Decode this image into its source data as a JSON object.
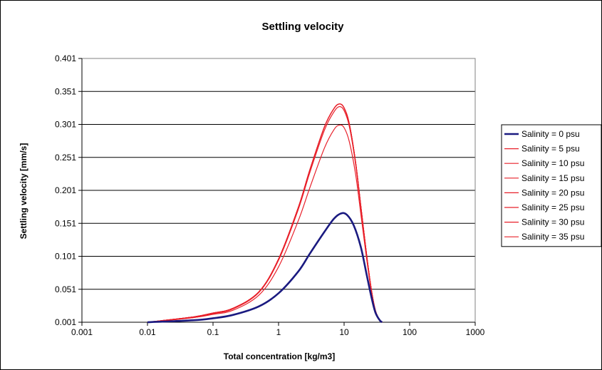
{
  "chart_data": {
    "type": "line",
    "title": "Settling velocity",
    "xlabel": "Total concentration [kg/m3]",
    "ylabel": "Settling velocity [mm/s]",
    "x_scale": "log",
    "xlim": [
      0.001,
      1000
    ],
    "ylim": [
      0.001,
      0.401
    ],
    "x_ticks": [
      "0.001",
      "0.01",
      "0.1",
      "1",
      "10",
      "100",
      "1000"
    ],
    "y_ticks": [
      "0.001",
      "0.051",
      "0.101",
      "0.151",
      "0.201",
      "0.251",
      "0.301",
      "0.351",
      "0.401"
    ],
    "grid": "horizontal",
    "legend_position": "right",
    "colors": {
      "fresh": "#1a1a80",
      "saline": "#e8202a"
    },
    "series": [
      {
        "name": "Salinity = 0 psu",
        "color": "#1a1a80",
        "width": 2.6,
        "x": [
          0.01,
          0.05,
          0.1,
          0.2,
          0.5,
          1,
          2,
          3,
          5,
          7,
          9,
          11,
          14,
          18,
          22,
          26,
          30,
          35,
          38
        ],
        "y": [
          0.001,
          0.004,
          0.007,
          0.012,
          0.025,
          0.045,
          0.078,
          0.105,
          0.138,
          0.158,
          0.166,
          0.164,
          0.148,
          0.115,
          0.074,
          0.04,
          0.016,
          0.004,
          0.001
        ]
      },
      {
        "name": "Salinity = 5 psu",
        "color": "#e8202a",
        "width": 1.2,
        "x": [
          0.01,
          0.05,
          0.1,
          0.2,
          0.5,
          1,
          2,
          3,
          5,
          7,
          8.5,
          10,
          12,
          15,
          18,
          22,
          26,
          30,
          35,
          38
        ],
        "y": [
          0.001,
          0.008,
          0.013,
          0.019,
          0.042,
          0.085,
          0.155,
          0.205,
          0.265,
          0.293,
          0.3,
          0.296,
          0.275,
          0.225,
          0.165,
          0.098,
          0.048,
          0.018,
          0.004,
          0.001
        ]
      },
      {
        "name": "Salinity = 10 psu",
        "color": "#e8202a",
        "width": 1.2,
        "x": [
          0.01,
          0.05,
          0.1,
          0.2,
          0.5,
          1,
          2,
          3,
          5,
          7,
          8.5,
          10,
          12,
          15,
          18,
          22,
          26,
          30,
          35,
          38
        ],
        "y": [
          0.001,
          0.008,
          0.014,
          0.021,
          0.046,
          0.095,
          0.172,
          0.228,
          0.292,
          0.32,
          0.328,
          0.322,
          0.298,
          0.24,
          0.175,
          0.103,
          0.05,
          0.019,
          0.004,
          0.001
        ]
      },
      {
        "name": "Salinity = 15 psu",
        "color": "#e8202a",
        "width": 1.2,
        "x": [
          0.01,
          0.05,
          0.1,
          0.2,
          0.5,
          1,
          2,
          3,
          5,
          7,
          8.5,
          10,
          12,
          15,
          18,
          22,
          26,
          30,
          35,
          38
        ],
        "y": [
          0.001,
          0.009,
          0.015,
          0.022,
          0.047,
          0.097,
          0.175,
          0.232,
          0.297,
          0.325,
          0.332,
          0.326,
          0.302,
          0.243,
          0.177,
          0.104,
          0.051,
          0.019,
          0.004,
          0.001
        ]
      },
      {
        "name": "Salinity = 20 psu",
        "color": "#e8202a",
        "width": 1.2,
        "x": [
          0.01,
          0.05,
          0.1,
          0.2,
          0.5,
          1,
          2,
          3,
          5,
          7,
          8.5,
          10,
          12,
          15,
          18,
          22,
          26,
          30,
          35,
          38
        ],
        "y": [
          0.001,
          0.009,
          0.015,
          0.022,
          0.047,
          0.097,
          0.175,
          0.232,
          0.297,
          0.325,
          0.332,
          0.326,
          0.302,
          0.243,
          0.177,
          0.104,
          0.051,
          0.019,
          0.004,
          0.001
        ]
      },
      {
        "name": "Salinity = 25 psu",
        "color": "#e8202a",
        "width": 1.2,
        "x": [
          0.01,
          0.05,
          0.1,
          0.2,
          0.5,
          1,
          2,
          3,
          5,
          7,
          8.5,
          10,
          12,
          15,
          18,
          22,
          26,
          30,
          35,
          38
        ],
        "y": [
          0.001,
          0.009,
          0.015,
          0.022,
          0.047,
          0.097,
          0.175,
          0.232,
          0.297,
          0.325,
          0.332,
          0.326,
          0.302,
          0.243,
          0.177,
          0.104,
          0.051,
          0.019,
          0.004,
          0.001
        ]
      },
      {
        "name": "Salinity = 30 psu",
        "color": "#e8202a",
        "width": 1.2,
        "x": [
          0.01,
          0.05,
          0.1,
          0.2,
          0.5,
          1,
          2,
          3,
          5,
          7,
          8.5,
          10,
          12,
          15,
          18,
          22,
          26,
          30,
          35,
          38
        ],
        "y": [
          0.001,
          0.009,
          0.015,
          0.022,
          0.047,
          0.097,
          0.175,
          0.232,
          0.297,
          0.325,
          0.332,
          0.326,
          0.302,
          0.243,
          0.177,
          0.104,
          0.051,
          0.019,
          0.004,
          0.001
        ]
      },
      {
        "name": "Salinity = 35 psu",
        "color": "#e8202a",
        "width": 1.2,
        "x": [
          0.01,
          0.05,
          0.1,
          0.2,
          0.5,
          1,
          2,
          3,
          5,
          7,
          8.5,
          10,
          12,
          15,
          18,
          22,
          26,
          30,
          35,
          38
        ],
        "y": [
          0.001,
          0.009,
          0.015,
          0.022,
          0.047,
          0.097,
          0.175,
          0.232,
          0.297,
          0.325,
          0.332,
          0.326,
          0.302,
          0.243,
          0.177,
          0.104,
          0.051,
          0.019,
          0.004,
          0.001
        ]
      }
    ]
  }
}
